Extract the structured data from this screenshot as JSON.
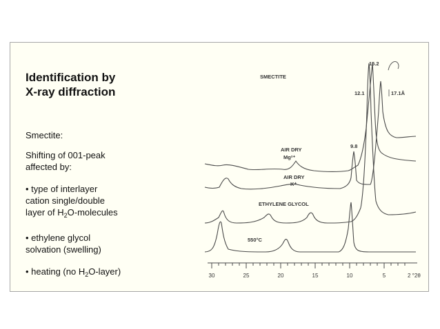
{
  "slide": {
    "title_line1": "Identification  by",
    "title_line2": "X-ray diffraction",
    "subtitle": "Smectite:",
    "shift_line1": "Shifting of 001-peak",
    "shift_line2": "affected by:",
    "bullet1_line1": "• type of interlayer",
    "bullet1_line2": "cation single/double",
    "bullet1_line3_pre": "layer of H",
    "bullet1_line3_sub": "2",
    "bullet1_line3_post": "O-molecules",
    "bullet2_line1": "• ethylene glycol",
    "bullet2_line2": "solvation (swelling)",
    "bullet3_pre": "• heating (no H",
    "bullet3_sub": "2",
    "bullet3_post": "O-layer)"
  },
  "figure": {
    "label": "SMECTITE",
    "peak_labels": {
      "p152": "15.2",
      "p121": "12.1",
      "p171": "17.1Å",
      "p98": "9.8"
    },
    "trace_labels": {
      "air_dry_mg_1": "AIR DRY",
      "air_dry_mg_2": "Mg²⁺",
      "air_dry_k_1": "AIR DRY",
      "air_dry_k_2": "K⁺",
      "eg": "ETHYLENE GLYCOL",
      "heat": "550°C"
    },
    "x_ticks": [
      "30",
      "25",
      "20",
      "15",
      "10",
      "5",
      "2 °2θ"
    ]
  }
}
